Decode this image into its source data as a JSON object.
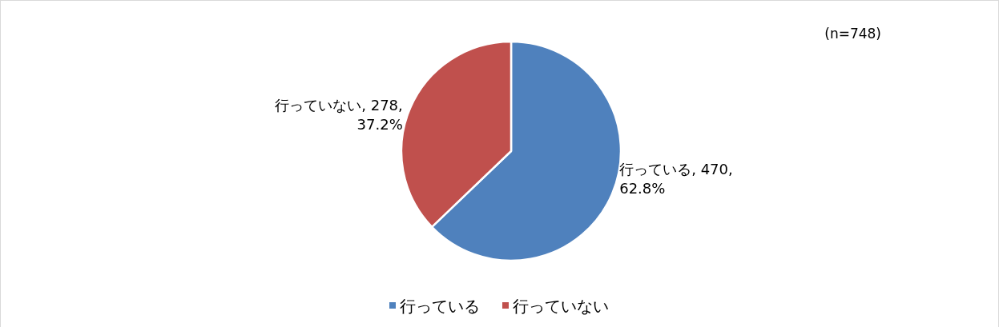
{
  "chart_data": {
    "type": "pie",
    "categories": [
      "行っている",
      "行っていない"
    ],
    "values": [
      470,
      278
    ],
    "colors": [
      "#4f81bd",
      "#c0504d"
    ],
    "value_labels": [
      "行っている, 470, 62.8%",
      "行っていない, 278, 37.2%"
    ],
    "annotations": [
      "(n=748)"
    ],
    "legend": "bottom"
  }
}
